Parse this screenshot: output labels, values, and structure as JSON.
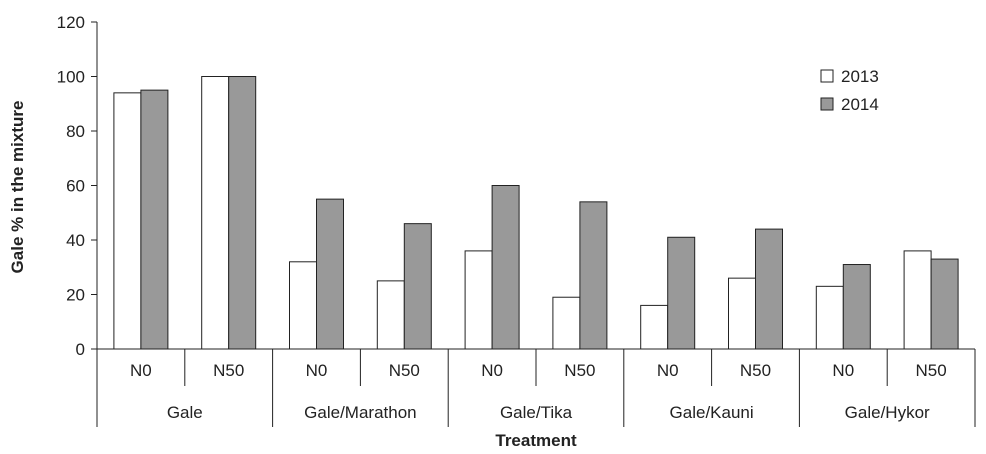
{
  "chart_data": {
    "type": "bar",
    "ylabel": "Gale % in the mixture",
    "xlabel": "Treatment",
    "ylim": [
      0,
      120
    ],
    "yticks": [
      "0",
      "20",
      "40",
      "60",
      "80",
      "100",
      "120"
    ],
    "grid": false,
    "legend_position": "top-right",
    "groups": [
      "Gale",
      "Gale/Marathon",
      "Gale/Tika",
      "Gale/Kauni",
      "Gale/Hykor"
    ],
    "categories": [
      "N0",
      "N50",
      "N0",
      "N50",
      "N0",
      "N50",
      "N0",
      "N50",
      "N0",
      "N50"
    ],
    "series": [
      {
        "name": "2013",
        "color": "#ffffff",
        "values": [
          94,
          100,
          32,
          25,
          36,
          19,
          16,
          26,
          23,
          36
        ]
      },
      {
        "name": "2014",
        "color": "#999999",
        "values": [
          95,
          100,
          55,
          46,
          60,
          54,
          41,
          44,
          31,
          33
        ]
      }
    ]
  }
}
